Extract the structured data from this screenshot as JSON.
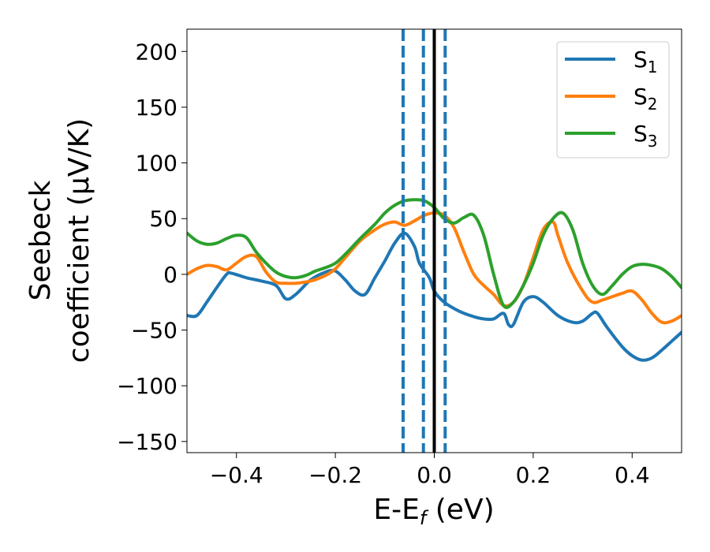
{
  "chart_data": {
    "type": "line",
    "xlabel": "E-E",
    "xlabel_sub": "f",
    "xlabel_unit": " (eV)",
    "ylabel_line1": "Seebeck",
    "ylabel_line2": "coefficient  (μV/K)",
    "xlim": [
      -0.5,
      0.5
    ],
    "ylim": [
      -160,
      220
    ],
    "xticks": [
      -0.4,
      -0.2,
      0.0,
      0.2,
      0.4
    ],
    "xtick_labels": [
      "−0.4",
      "−0.2",
      "0.0",
      "0.2",
      "0.4"
    ],
    "yticks": [
      -150,
      -100,
      -50,
      0,
      50,
      100,
      150,
      200
    ],
    "ytick_labels": [
      "−150",
      "−100",
      "−50",
      "0",
      "50",
      "100",
      "150",
      "200"
    ],
    "legend_position": "top-right",
    "grid": false,
    "vlines": [
      {
        "x": -0.063,
        "style": "dashed",
        "color": "#1f77b4"
      },
      {
        "x": -0.022,
        "style": "dashed",
        "color": "#1f77b4"
      },
      {
        "x": 0.0,
        "style": "solid",
        "color": "#000000"
      },
      {
        "x": 0.022,
        "style": "dashed",
        "color": "#1f77b4"
      }
    ],
    "series": [
      {
        "name": "S",
        "sub": "1",
        "color": "#1f77b4",
        "x": [
          -0.5,
          -0.48,
          -0.46,
          -0.44,
          -0.42,
          -0.41,
          -0.38,
          -0.35,
          -0.32,
          -0.3,
          -0.28,
          -0.25,
          -0.22,
          -0.2,
          -0.18,
          -0.16,
          -0.14,
          -0.12,
          -0.1,
          -0.08,
          -0.06,
          -0.04,
          -0.03,
          -0.01,
          0.0,
          0.02,
          0.05,
          0.08,
          0.1,
          0.12,
          0.14,
          0.15,
          0.16,
          0.18,
          0.2,
          0.22,
          0.25,
          0.28,
          0.3,
          0.32,
          0.33,
          0.35,
          0.38,
          0.4,
          0.42,
          0.44,
          0.46,
          0.48,
          0.5
        ],
        "y": [
          -37,
          -37,
          -25,
          -12,
          0,
          1,
          -3,
          -6,
          -10,
          -22,
          -18,
          -5,
          2,
          3,
          -5,
          -15,
          -18,
          -3,
          12,
          28,
          37,
          25,
          10,
          -3,
          -15,
          -25,
          -33,
          -38,
          -40,
          -40,
          -35,
          -45,
          -45,
          -25,
          -20,
          -25,
          -37,
          -43,
          -42,
          -35,
          -35,
          -48,
          -65,
          -73,
          -77,
          -75,
          -68,
          -60,
          -52
        ]
      },
      {
        "name": "S",
        "sub": "2",
        "color": "#ff7f0e",
        "x": [
          -0.5,
          -0.48,
          -0.46,
          -0.44,
          -0.42,
          -0.4,
          -0.38,
          -0.36,
          -0.34,
          -0.32,
          -0.3,
          -0.28,
          -0.25,
          -0.22,
          -0.2,
          -0.18,
          -0.15,
          -0.12,
          -0.1,
          -0.08,
          -0.06,
          -0.04,
          -0.02,
          0.0,
          0.02,
          0.04,
          0.06,
          0.08,
          0.1,
          0.12,
          0.14,
          0.16,
          0.18,
          0.2,
          0.22,
          0.24,
          0.25,
          0.27,
          0.3,
          0.32,
          0.34,
          0.36,
          0.38,
          0.4,
          0.42,
          0.44,
          0.46,
          0.48,
          0.5
        ],
        "y": [
          0,
          5,
          8,
          7,
          4,
          10,
          16,
          16,
          2,
          -7,
          -8,
          -8,
          -6,
          -1,
          5,
          15,
          30,
          40,
          45,
          47,
          44,
          48,
          53,
          55,
          53,
          42,
          20,
          0,
          -10,
          -18,
          -28,
          -25,
          -10,
          15,
          40,
          47,
          35,
          10,
          -15,
          -25,
          -23,
          -20,
          -17,
          -15,
          -23,
          -35,
          -43,
          -42,
          -37
        ]
      },
      {
        "name": "S",
        "sub": "3",
        "color": "#2ca02c",
        "x": [
          -0.5,
          -0.48,
          -0.46,
          -0.44,
          -0.42,
          -0.4,
          -0.38,
          -0.36,
          -0.34,
          -0.32,
          -0.3,
          -0.28,
          -0.26,
          -0.24,
          -0.22,
          -0.2,
          -0.18,
          -0.15,
          -0.12,
          -0.1,
          -0.08,
          -0.06,
          -0.04,
          -0.02,
          0.0,
          0.02,
          0.04,
          0.06,
          0.08,
          0.1,
          0.12,
          0.14,
          0.16,
          0.18,
          0.2,
          0.22,
          0.24,
          0.26,
          0.28,
          0.3,
          0.32,
          0.34,
          0.36,
          0.38,
          0.4,
          0.42,
          0.44,
          0.46,
          0.48,
          0.5
        ],
        "y": [
          37,
          30,
          27,
          28,
          32,
          35,
          33,
          20,
          10,
          2,
          -2,
          -3,
          -1,
          3,
          6,
          10,
          18,
          32,
          45,
          55,
          62,
          66,
          67,
          66,
          60,
          50,
          46,
          51,
          53,
          35,
          0,
          -28,
          -25,
          -10,
          10,
          35,
          50,
          55,
          40,
          10,
          -10,
          -18,
          -10,
          0,
          7,
          9,
          8,
          5,
          -2,
          -12
        ]
      }
    ]
  }
}
